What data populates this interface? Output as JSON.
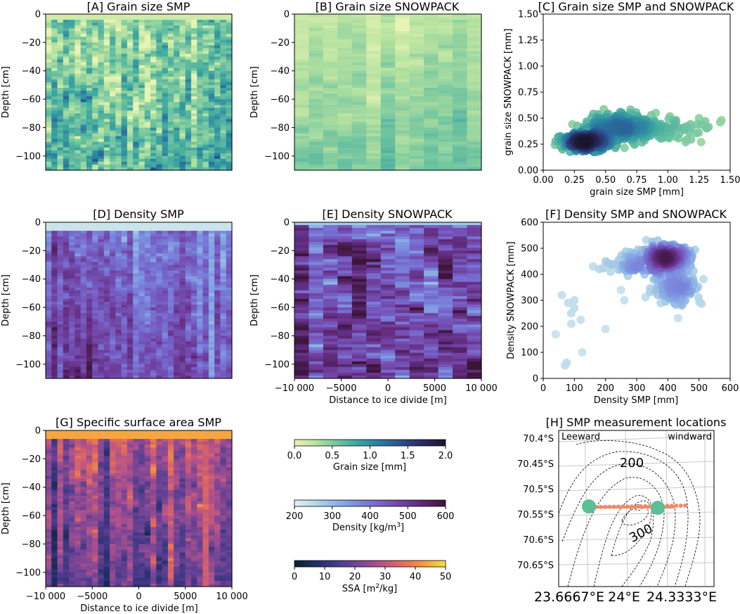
{
  "chart_data": [
    {
      "id": "A",
      "type": "heatmap",
      "title": "[A] Grain size SMP",
      "ylabel": "Depth [cm]",
      "xlabel": "",
      "y_ticks": [
        0,
        -20,
        -40,
        -60,
        -80,
        -100
      ],
      "ylim": [
        -110,
        0
      ],
      "colormap": "crest",
      "value_range_mm": [
        0.0,
        2.0
      ],
      "typical_value_mm": 0.55,
      "num_columns": 32,
      "num_rows": 55
    },
    {
      "id": "B",
      "type": "heatmap",
      "title": "[B] Grain size SNOWPACK",
      "ylabel": "Depth [cm]",
      "xlabel": "",
      "y_ticks": [
        0,
        -20,
        -40,
        -60,
        -80,
        -100
      ],
      "ylim": [
        -110,
        0
      ],
      "colormap": "crest",
      "value_range_mm": [
        0.0,
        2.0
      ],
      "typical_value_mm": 0.4,
      "num_columns": 13,
      "num_rows": 55
    },
    {
      "id": "C",
      "type": "scatter",
      "title": "[C] Grain size SMP and SNOWPACK",
      "xlabel": "grain size SMP [mm]",
      "ylabel": "grain size SNOWPACK [mm]",
      "xlim": [
        0,
        1.5
      ],
      "ylim": [
        0,
        1.5
      ],
      "x_ticks": [
        "0.00",
        "0.25",
        "0.50",
        "0.75",
        "1.00",
        "1.25",
        "1.50"
      ],
      "y_ticks": [
        "0.00",
        "0.25",
        "0.50",
        "0.75",
        "1.00",
        "1.25",
        "1.50"
      ],
      "clusters": [
        {
          "cx": 0.35,
          "cy": 0.27,
          "sx": 0.1,
          "sy": 0.04,
          "n": 260
        },
        {
          "cx": 0.62,
          "cy": 0.42,
          "sx": 0.16,
          "sy": 0.07,
          "n": 230
        },
        {
          "cx": 0.95,
          "cy": 0.4,
          "sx": 0.2,
          "sy": 0.06,
          "n": 60
        }
      ],
      "extra_points": [
        [
          1.42,
          0.46
        ],
        [
          1.43,
          0.48
        ],
        [
          1.25,
          0.5
        ],
        [
          1.3,
          0.47
        ],
        [
          1.15,
          0.42
        ],
        [
          0.12,
          0.32
        ],
        [
          0.1,
          0.28
        ]
      ]
    },
    {
      "id": "D",
      "type": "heatmap",
      "title": "[D] Density SMP",
      "ylabel": "Depth [cm]",
      "xlabel": "",
      "y_ticks": [
        0,
        -20,
        -40,
        -60,
        -80,
        -100
      ],
      "ylim": [
        -110,
        0
      ],
      "colormap": "dense",
      "value_range": [
        200,
        600
      ],
      "typical_value": 440,
      "num_columns": 32,
      "num_rows": 55
    },
    {
      "id": "E",
      "type": "heatmap",
      "title": "[E] Density SNOWPACK",
      "ylabel": "Depth [cm]",
      "xlabel": "Distance to ice divide [m]",
      "y_ticks": [
        0,
        -20,
        -40,
        -60,
        -80,
        -100
      ],
      "ylim": [
        -110,
        0
      ],
      "x_ticks": [
        "−10 000",
        "−5000",
        "0",
        "5000",
        "10 000"
      ],
      "xlim": [
        -10000,
        10000
      ],
      "colormap": "dense",
      "value_range": [
        200,
        600
      ],
      "typical_value": 470,
      "num_columns": 13,
      "num_rows": 55
    },
    {
      "id": "F",
      "type": "scatter",
      "title": "[F] Density SMP and SNOWPACK",
      "xlabel": "Density SMP [mm]",
      "ylabel": "Density SNOWPACK [mm]",
      "xlim": [
        0,
        600
      ],
      "ylim": [
        0,
        600
      ],
      "x_ticks": [
        "0",
        "100",
        "200",
        "300",
        "400",
        "500",
        "600"
      ],
      "y_ticks": [
        "0",
        "100",
        "200",
        "300",
        "400",
        "500",
        "600"
      ],
      "clusters": [
        {
          "cx": 390,
          "cy": 460,
          "sx": 40,
          "sy": 25,
          "n": 300
        },
        {
          "cx": 430,
          "cy": 350,
          "sx": 40,
          "sy": 35,
          "n": 120
        },
        {
          "cx": 290,
          "cy": 440,
          "sx": 45,
          "sy": 20,
          "n": 60
        }
      ],
      "extra_points": [
        [
          60,
          320
        ],
        [
          80,
          290
        ],
        [
          90,
          250
        ],
        [
          100,
          300
        ],
        [
          40,
          170
        ],
        [
          75,
          60
        ],
        [
          70,
          50
        ],
        [
          125,
          100
        ],
        [
          120,
          225
        ],
        [
          200,
          450
        ],
        [
          180,
          420
        ],
        [
          160,
          430
        ],
        [
          250,
          340
        ],
        [
          260,
          300
        ],
        [
          200,
          190
        ],
        [
          90,
          210
        ],
        [
          100,
          270
        ]
      ]
    },
    {
      "id": "G",
      "type": "heatmap",
      "title": "[G] Specific surface area SMP",
      "ylabel": "Depth [cm]",
      "xlabel": "Distance to ice divide [m]",
      "y_ticks": [
        0,
        -20,
        -40,
        -60,
        -80,
        -100
      ],
      "ylim": [
        -110,
        0
      ],
      "x_ticks": [
        "−10 000",
        "−5000",
        "0",
        "5000",
        "10 000"
      ],
      "xlim": [
        -10000,
        10000
      ],
      "colormap": "thermal",
      "value_range": [
        0,
        50
      ],
      "typical_value": 22,
      "num_columns": 32,
      "num_rows": 55
    },
    {
      "id": "H",
      "type": "map",
      "title": "[H] SMP measurement locations",
      "lat_labels": [
        "70.4°S",
        "70.45°S",
        "70.5°S",
        "70.55°S",
        "70.6°S",
        "70.65°S"
      ],
      "lon_labels": [
        "23.6667°E",
        "24°E",
        "24.3333°E"
      ],
      "corner_labels": {
        "left": "Leeward",
        "right": "windward"
      },
      "contour_labels": [
        "200",
        "300"
      ],
      "num_measurement_points": 22
    }
  ],
  "colorbars": [
    {
      "label": "Grain size [mm]",
      "ticks": [
        "0.0",
        "0.5",
        "1.0",
        "1.5",
        "2.0"
      ],
      "colormap": "crest"
    },
    {
      "label_main": "Density [kg/m",
      "label_sup": "3",
      "label_end": "]",
      "ticks": [
        "200",
        "300",
        "400",
        "500",
        "600"
      ],
      "colormap": "dense"
    },
    {
      "label_main": "SSA [m",
      "label_sup": "2",
      "label_end": "/kg]",
      "ticks": [
        "0",
        "10",
        "20",
        "30",
        "40",
        "50"
      ],
      "colormap": "thermal"
    }
  ],
  "colors": {
    "crest": [
      "#e8f4b4",
      "#b6e2a0",
      "#6fc4a0",
      "#3aa3a0",
      "#2a7aa2",
      "#2a4e8e",
      "#28295a",
      "#1a1530"
    ],
    "dense": [
      "#e6f1f1",
      "#b3d7e8",
      "#8ab2e6",
      "#7a88dd",
      "#7662c8",
      "#70409e",
      "#5c2674",
      "#3c1538"
    ],
    "thermal": [
      "#042333",
      "#252f6b",
      "#4a3b8c",
      "#7a4696",
      "#b2528a",
      "#e26b5c",
      "#f79a3e",
      "#f4e33c"
    ],
    "measurement": "#f08a68",
    "marker_big": "#5bbf96",
    "grid": "#c8c8c8",
    "lon_label": "#888888"
  }
}
